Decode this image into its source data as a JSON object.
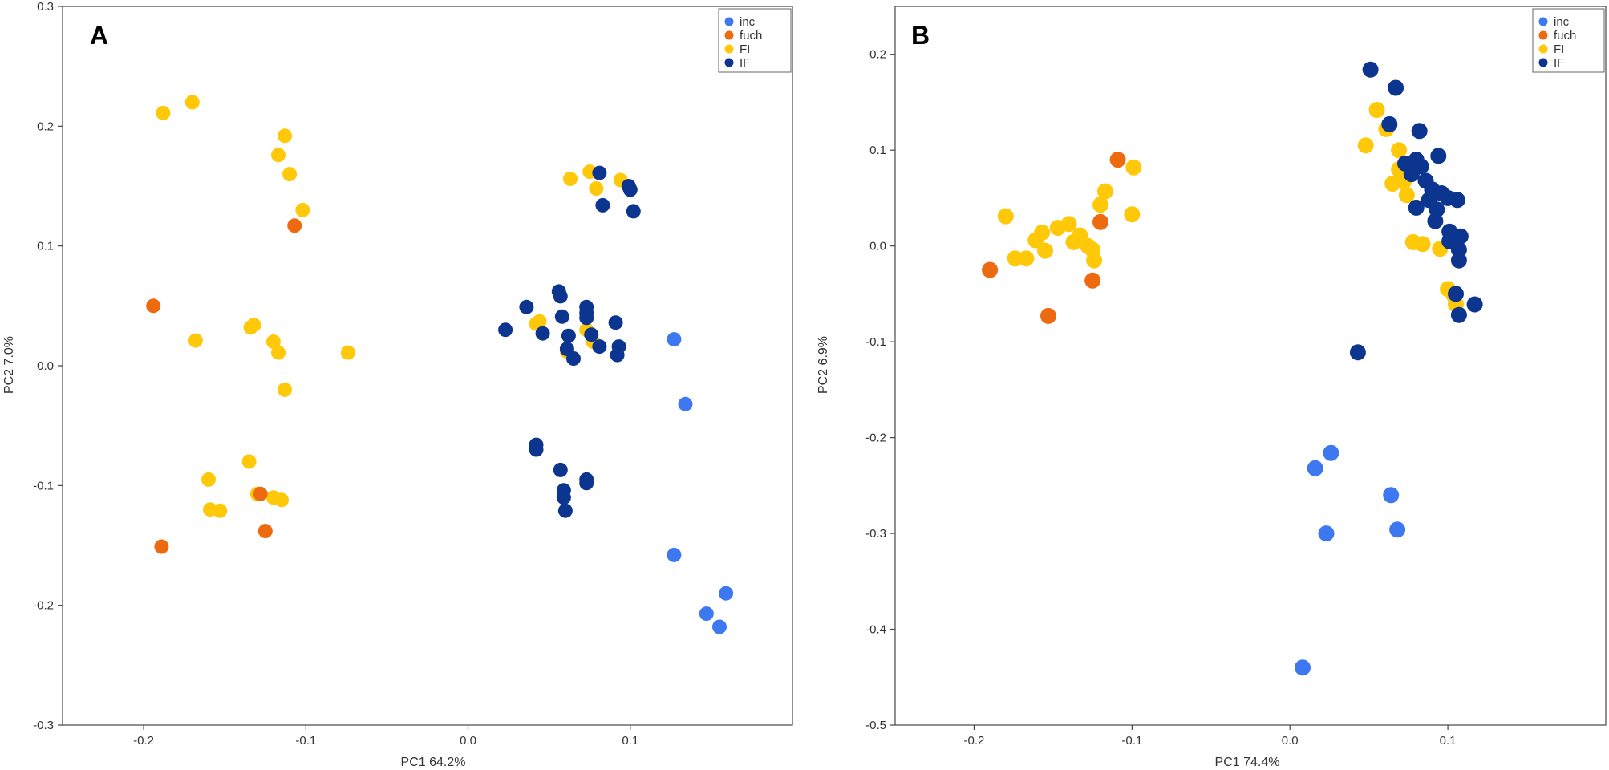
{
  "colors": {
    "inc": "#3d78f0",
    "fuch": "#ee6a10",
    "FI": "#ffc808",
    "IF": "#0c3590"
  },
  "chart_data": [
    {
      "type": "scatter",
      "panel": "A",
      "title": "",
      "xlabel": "PC1 64.2%",
      "ylabel": "PC2 7.0%",
      "xlim": [
        -0.25,
        0.2
      ],
      "ylim": [
        -0.3,
        0.3
      ],
      "xticks": [
        -0.2,
        -0.1,
        0.0,
        0.1
      ],
      "xtick_labels": [
        "-0.2",
        "-0.1",
        "0.0",
        "0.1"
      ],
      "yticks": [
        -0.3,
        -0.2,
        -0.1,
        0.0,
        0.1,
        0.2,
        0.3
      ],
      "ytick_labels": [
        "-0.3",
        "-0.2",
        "-0.1",
        "0.0",
        "0.1",
        "0.2",
        "0.3"
      ],
      "grid": false,
      "legend_position": "top-right",
      "series": [
        {
          "name": "FI",
          "color_key": "FI",
          "points": [
            [
              -0.188,
              0.211
            ],
            [
              -0.17,
              0.22
            ],
            [
              -0.113,
              0.192
            ],
            [
              -0.117,
              0.176
            ],
            [
              -0.11,
              0.16
            ],
            [
              -0.102,
              0.13
            ],
            [
              -0.168,
              0.021
            ],
            [
              -0.134,
              0.032
            ],
            [
              -0.132,
              0.034
            ],
            [
              -0.12,
              0.02
            ],
            [
              -0.117,
              0.011
            ],
            [
              -0.074,
              0.011
            ],
            [
              -0.113,
              -0.02
            ],
            [
              -0.135,
              -0.08
            ],
            [
              -0.16,
              -0.095
            ],
            [
              -0.13,
              -0.107
            ],
            [
              -0.12,
              -0.11
            ],
            [
              -0.115,
              -0.112
            ],
            [
              -0.159,
              -0.12
            ],
            [
              -0.153,
              -0.121
            ],
            [
              0.063,
              0.156
            ],
            [
              0.075,
              0.162
            ],
            [
              0.079,
              0.148
            ],
            [
              0.094,
              0.155
            ],
            [
              0.044,
              0.037
            ],
            [
              0.061,
              0.012
            ],
            [
              0.073,
              0.03
            ],
            [
              0.077,
              0.02
            ],
            [
              0.042,
              0.035
            ]
          ]
        },
        {
          "name": "fuch",
          "color_key": "fuch",
          "points": [
            [
              -0.107,
              0.117
            ],
            [
              -0.194,
              0.05
            ],
            [
              -0.128,
              -0.107
            ],
            [
              -0.125,
              -0.138
            ],
            [
              -0.189,
              -0.151
            ]
          ]
        },
        {
          "name": "IF",
          "color_key": "IF",
          "points": [
            [
              0.081,
              0.161
            ],
            [
              0.099,
              0.15
            ],
            [
              0.1,
              0.147
            ],
            [
              0.083,
              0.134
            ],
            [
              0.102,
              0.129
            ],
            [
              0.056,
              0.062
            ],
            [
              0.057,
              0.058
            ],
            [
              0.036,
              0.049
            ],
            [
              0.073,
              0.049
            ],
            [
              0.073,
              0.044
            ],
            [
              0.058,
              0.041
            ],
            [
              0.073,
              0.04
            ],
            [
              0.091,
              0.036
            ],
            [
              0.023,
              0.03
            ],
            [
              0.046,
              0.027
            ],
            [
              0.062,
              0.025
            ],
            [
              0.076,
              0.026
            ],
            [
              0.081,
              0.016
            ],
            [
              0.093,
              0.016
            ],
            [
              0.061,
              0.014
            ],
            [
              0.092,
              0.009
            ],
            [
              0.065,
              0.006
            ],
            [
              0.042,
              -0.066
            ],
            [
              0.042,
              -0.07
            ],
            [
              0.057,
              -0.087
            ],
            [
              0.073,
              -0.095
            ],
            [
              0.073,
              -0.098
            ],
            [
              0.059,
              -0.104
            ],
            [
              0.059,
              -0.11
            ],
            [
              0.06,
              -0.121
            ]
          ]
        },
        {
          "name": "inc",
          "color_key": "inc",
          "points": [
            [
              0.127,
              0.022
            ],
            [
              0.134,
              -0.032
            ],
            [
              0.127,
              -0.158
            ],
            [
              0.159,
              -0.19
            ],
            [
              0.147,
              -0.207
            ],
            [
              0.155,
              -0.218
            ]
          ]
        }
      ]
    },
    {
      "type": "scatter",
      "panel": "B",
      "title": "",
      "xlabel": "PC1 74.4%",
      "ylabel": "PC2 6.9%",
      "xlim": [
        -0.25,
        0.2
      ],
      "ylim": [
        -0.5,
        0.25
      ],
      "xticks": [
        -0.2,
        -0.1,
        0.0,
        0.1
      ],
      "xtick_labels": [
        "-0.2",
        "-0.1",
        "0.0",
        "0.1"
      ],
      "yticks": [
        -0.5,
        -0.4,
        -0.3,
        -0.2,
        -0.1,
        0.0,
        0.1,
        0.2
      ],
      "ytick_labels": [
        "-0.5",
        "-0.4",
        "-0.3",
        "-0.2",
        "-0.1",
        "0.0",
        "0.1",
        "0.2"
      ],
      "grid": false,
      "legend_position": "top-right",
      "series": [
        {
          "name": "FI",
          "color_key": "FI",
          "points": [
            [
              -0.18,
              0.031
            ],
            [
              -0.174,
              -0.013
            ],
            [
              -0.167,
              -0.013
            ],
            [
              -0.161,
              0.006
            ],
            [
              -0.157,
              0.014
            ],
            [
              -0.155,
              -0.005
            ],
            [
              -0.147,
              0.019
            ],
            [
              -0.14,
              0.023
            ],
            [
              -0.137,
              0.004
            ],
            [
              -0.133,
              0.011
            ],
            [
              -0.128,
              0.0
            ],
            [
              -0.125,
              -0.004
            ],
            [
              -0.124,
              -0.015
            ],
            [
              -0.12,
              0.043
            ],
            [
              -0.117,
              0.057
            ],
            [
              -0.099,
              0.082
            ],
            [
              -0.1,
              0.033
            ],
            [
              0.055,
              0.142
            ],
            [
              0.048,
              0.105
            ],
            [
              0.061,
              0.122
            ],
            [
              0.069,
              0.1
            ],
            [
              0.069,
              0.08
            ],
            [
              0.065,
              0.065
            ],
            [
              0.074,
              0.053
            ],
            [
              0.072,
              0.067
            ],
            [
              0.078,
              0.004
            ],
            [
              0.084,
              0.002
            ],
            [
              0.095,
              -0.003
            ],
            [
              0.1,
              -0.045
            ],
            [
              0.105,
              -0.061
            ],
            [
              0.104,
              -0.052
            ]
          ]
        },
        {
          "name": "fuch",
          "color_key": "fuch",
          "points": [
            [
              -0.109,
              0.09
            ],
            [
              -0.12,
              0.025
            ],
            [
              -0.19,
              -0.025
            ],
            [
              -0.125,
              -0.036
            ],
            [
              -0.153,
              -0.073
            ]
          ]
        },
        {
          "name": "IF",
          "color_key": "IF",
          "points": [
            [
              0.051,
              0.184
            ],
            [
              0.067,
              0.165
            ],
            [
              0.063,
              0.127
            ],
            [
              0.082,
              0.12
            ],
            [
              0.073,
              0.086
            ],
            [
              0.08,
              0.09
            ],
            [
              0.083,
              0.083
            ],
            [
              0.094,
              0.094
            ],
            [
              0.077,
              0.075
            ],
            [
              0.086,
              0.068
            ],
            [
              0.09,
              0.059
            ],
            [
              0.088,
              0.048
            ],
            [
              0.096,
              0.055
            ],
            [
              0.1,
              0.05
            ],
            [
              0.106,
              0.048
            ],
            [
              0.08,
              0.04
            ],
            [
              0.093,
              0.038
            ],
            [
              0.092,
              0.026
            ],
            [
              0.101,
              0.015
            ],
            [
              0.108,
              0.01
            ],
            [
              0.101,
              0.005
            ],
            [
              0.105,
              0.003
            ],
            [
              0.107,
              -0.004
            ],
            [
              0.107,
              -0.015
            ],
            [
              0.105,
              -0.05
            ],
            [
              0.107,
              -0.072
            ],
            [
              0.117,
              -0.061
            ],
            [
              0.043,
              -0.111
            ]
          ]
        },
        {
          "name": "inc",
          "color_key": "inc",
          "points": [
            [
              0.026,
              -0.216
            ],
            [
              0.016,
              -0.232
            ],
            [
              0.064,
              -0.26
            ],
            [
              0.023,
              -0.3
            ],
            [
              0.068,
              -0.296
            ],
            [
              0.008,
              -0.44
            ]
          ]
        }
      ]
    }
  ]
}
